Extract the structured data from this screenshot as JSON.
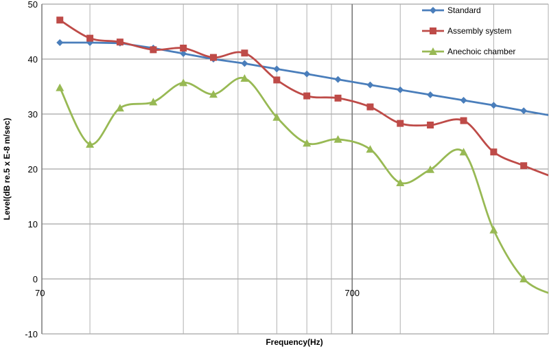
{
  "chart_data": {
    "type": "line",
    "xscale": "log",
    "xlabel": "Frequency(Hz)",
    "ylabel": "Level(dB re.5 x E-8  m/sec)",
    "ylim": [
      -10,
      50
    ],
    "xlim": [
      70,
      3000
    ],
    "yticks": [
      -10,
      0,
      10,
      20,
      30,
      40,
      50
    ],
    "xtick_labels": [
      {
        "value": 70,
        "label": "70"
      },
      {
        "value": 700,
        "label": "700"
      }
    ],
    "xminor": [
      100,
      200,
      300,
      400,
      500,
      600,
      1000,
      2000,
      3000
    ],
    "grid": true,
    "legend_position": "top-right",
    "x": [
      80,
      100,
      125,
      160,
      200,
      250,
      315,
      400,
      500,
      630,
      800,
      1000,
      1250,
      1600,
      2000,
      2500,
      3150
    ],
    "series": [
      {
        "name": "Standard",
        "color": "#4a7ebb",
        "marker": "diamond",
        "values": [
          43.0,
          43.0,
          42.9,
          42.0,
          41.0,
          40.0,
          39.2,
          38.2,
          37.3,
          36.3,
          35.3,
          34.4,
          33.5,
          32.5,
          31.6,
          30.6,
          29.6
        ]
      },
      {
        "name": "Assembly system",
        "color": "#be4b48",
        "marker": "square",
        "values": [
          47.1,
          43.8,
          43.1,
          41.7,
          42.0,
          40.3,
          41.1,
          36.2,
          33.3,
          32.9,
          31.3,
          28.3,
          28.0,
          28.8,
          23.1,
          20.6,
          18.4
        ]
      },
      {
        "name": "Anechoic chamber",
        "color": "#98b954",
        "marker": "triangle",
        "values": [
          34.8,
          24.5,
          31.1,
          32.2,
          35.7,
          33.6,
          36.5,
          29.4,
          24.7,
          25.4,
          23.6,
          17.5,
          19.9,
          23.1,
          8.9,
          0.0,
          -3.0
        ]
      }
    ]
  }
}
